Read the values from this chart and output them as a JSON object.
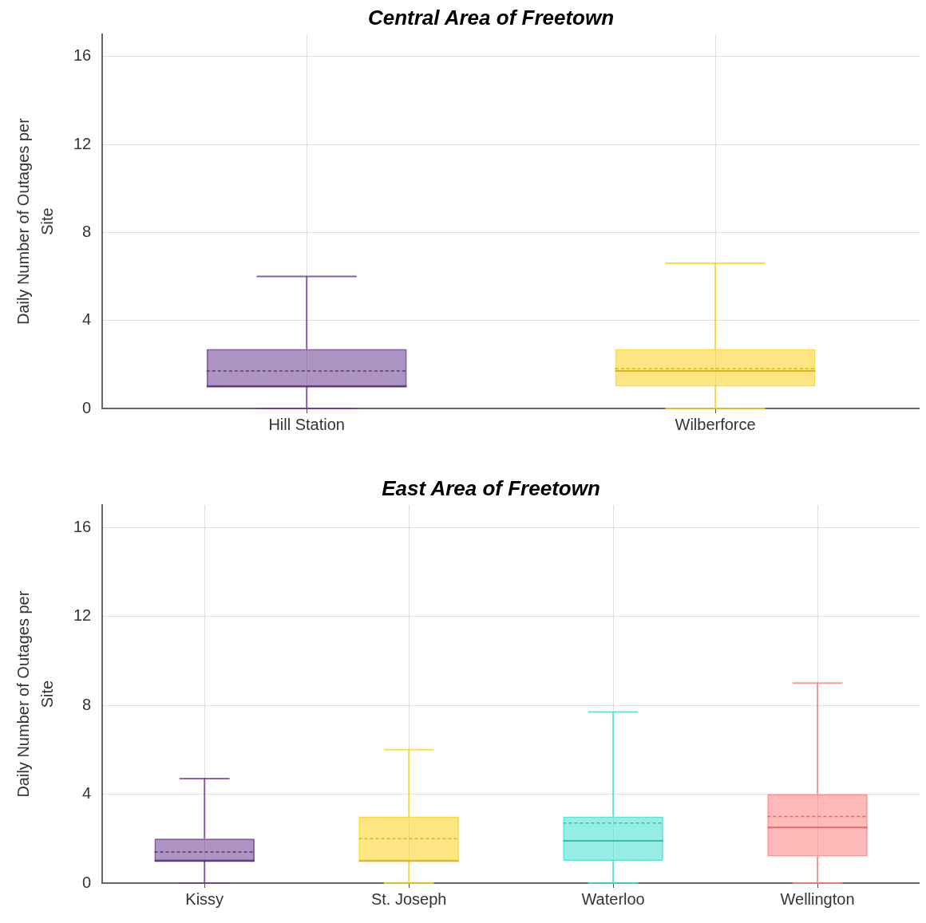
{
  "chart_data": [
    {
      "type": "box",
      "title": "Central Area of Freetown",
      "ylabel": "Daily Number of Outages per Site",
      "categories": [
        "Hill Station",
        "Wilberforce"
      ],
      "colors": [
        "#6a3d8f",
        "#ffd21f"
      ],
      "boxes": [
        {
          "low": 0,
          "q1": 1,
          "median": 1,
          "q3": 2.7,
          "high": 6,
          "mean": 1.7
        },
        {
          "low": 0,
          "q1": 1,
          "median": 1.7,
          "q3": 2.7,
          "high": 6.6,
          "mean": 1.8
        }
      ],
      "ylim": [
        0,
        17
      ],
      "yticks": [
        0,
        4,
        8,
        12,
        16
      ],
      "grid": true,
      "legend": false
    },
    {
      "type": "box",
      "title": "East Area of Freetown",
      "ylabel": "Daily Number of Outages per Site",
      "categories": [
        "Kissy",
        "St. Joseph",
        "Waterloo",
        "Wellington"
      ],
      "colors": [
        "#6a3d8f",
        "#ffd21f",
        "#40e0d0",
        "#ff7f7f"
      ],
      "boxes": [
        {
          "low": 0,
          "q1": 1,
          "median": 1,
          "q3": 2,
          "high": 4.7,
          "mean": 1.4
        },
        {
          "low": 0,
          "q1": 1,
          "median": 1,
          "q3": 3,
          "high": 6,
          "mean": 2
        },
        {
          "low": 0,
          "q1": 1,
          "median": 1.9,
          "q3": 3,
          "high": 7.7,
          "mean": 2.7
        },
        {
          "low": 0,
          "q1": 1.2,
          "median": 2.5,
          "q3": 4,
          "high": 9,
          "mean": 3
        }
      ],
      "ylim": [
        0,
        17
      ],
      "yticks": [
        0,
        4,
        8,
        12,
        16
      ],
      "grid": true,
      "legend": false
    }
  ]
}
